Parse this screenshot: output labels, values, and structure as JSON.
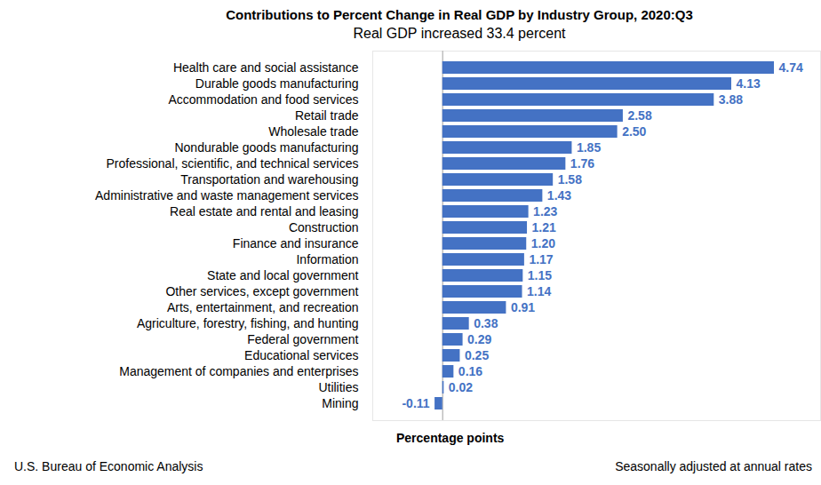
{
  "chart_data": {
    "type": "bar",
    "orientation": "horizontal",
    "title": "Contributions to Percent Change in Real GDP by Industry Group, 2020:Q3",
    "subtitle": "Real GDP increased 33.4 percent",
    "x_label": "Percentage points",
    "source": "U.S. Bureau of Economic Analysis",
    "note": "Seasonally adjusted at annual rates",
    "categories": [
      "Health care and social assistance",
      "Durable goods manufacturing",
      "Accommodation and food services",
      "Retail trade",
      "Wholesale trade",
      "Nondurable goods manufacturing",
      "Professional, scientific, and technical services",
      "Transportation and warehousing",
      "Administrative and waste management services",
      "Real estate and rental and leasing",
      "Construction",
      "Finance and insurance",
      "Information",
      "State and local government",
      "Other services, except government",
      "Arts, entertainment, and recreation",
      "Agriculture, forestry, fishing, and hunting",
      "Federal government",
      "Educational services",
      "Management of companies and enterprises",
      "Utilities",
      "Mining"
    ],
    "values": [
      4.74,
      4.13,
      3.88,
      2.58,
      2.5,
      1.85,
      1.76,
      1.58,
      1.43,
      1.23,
      1.21,
      1.2,
      1.17,
      1.15,
      1.14,
      0.91,
      0.38,
      0.29,
      0.25,
      0.16,
      0.02,
      -0.11
    ],
    "value_labels": [
      "4.74",
      "4.13",
      "3.88",
      "2.58",
      "2.50",
      "1.85",
      "1.76",
      "1.58",
      "1.43",
      "1.23",
      "1.21",
      "1.20",
      "1.17",
      "1.15",
      "1.14",
      "0.91",
      "0.38",
      "0.29",
      "0.25",
      "0.16",
      "0.02",
      "-0.11"
    ],
    "color": "#4472c4",
    "xlim": [
      -1,
      5.4
    ],
    "data_labels": true,
    "tick_labels": "y",
    "grid": false
  }
}
